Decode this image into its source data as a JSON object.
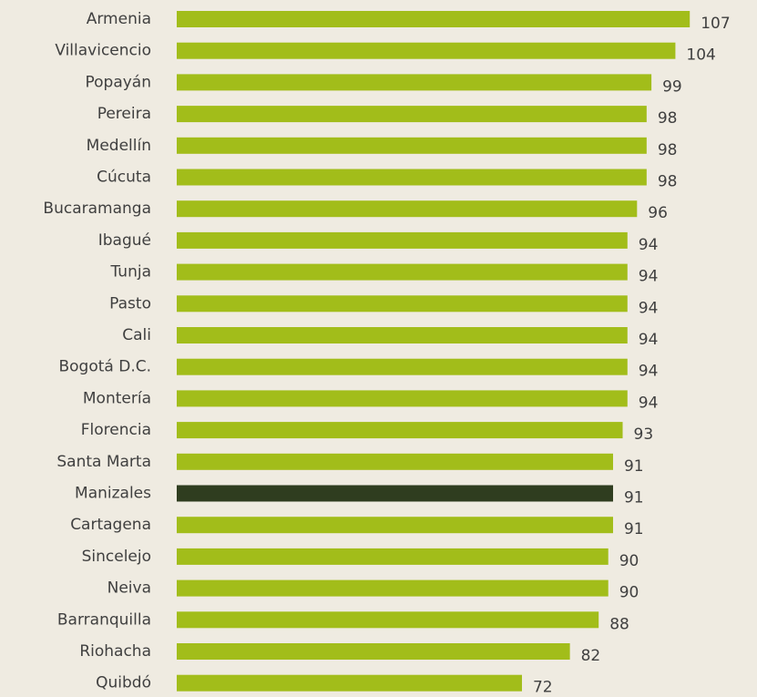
{
  "chart_data": {
    "type": "barh",
    "categories": [
      "Armenia",
      "Villavicencio",
      "Popayán",
      "Pereira",
      "Medellín",
      "Cúcuta",
      "Bucaramanga",
      "Ibagué",
      "Tunja",
      "Pasto",
      "Cali",
      "Bogotá D.C.",
      "Montería",
      "Florencia",
      "Santa Marta",
      "Manizales",
      "Cartagena",
      "Sincelejo",
      "Neiva",
      "Barranquilla",
      "Riohacha",
      "Quibdó"
    ],
    "values": [
      107,
      104,
      99,
      98,
      98,
      98,
      96,
      94,
      94,
      94,
      94,
      94,
      94,
      93,
      91,
      91,
      91,
      90,
      90,
      88,
      82,
      72
    ],
    "colors": [
      "#a2bd1a",
      "#a2bd1a",
      "#a2bd1a",
      "#a2bd1a",
      "#a2bd1a",
      "#a2bd1a",
      "#a2bd1a",
      "#a2bd1a",
      "#a2bd1a",
      "#a2bd1a",
      "#a2bd1a",
      "#a2bd1a",
      "#a2bd1a",
      "#a2bd1a",
      "#a2bd1a",
      "#2f3d1f",
      "#a2bd1a",
      "#a2bd1a",
      "#a2bd1a",
      "#a2bd1a",
      "#a2bd1a",
      "#a2bd1a"
    ],
    "xlim": [
      0,
      110
    ]
  }
}
